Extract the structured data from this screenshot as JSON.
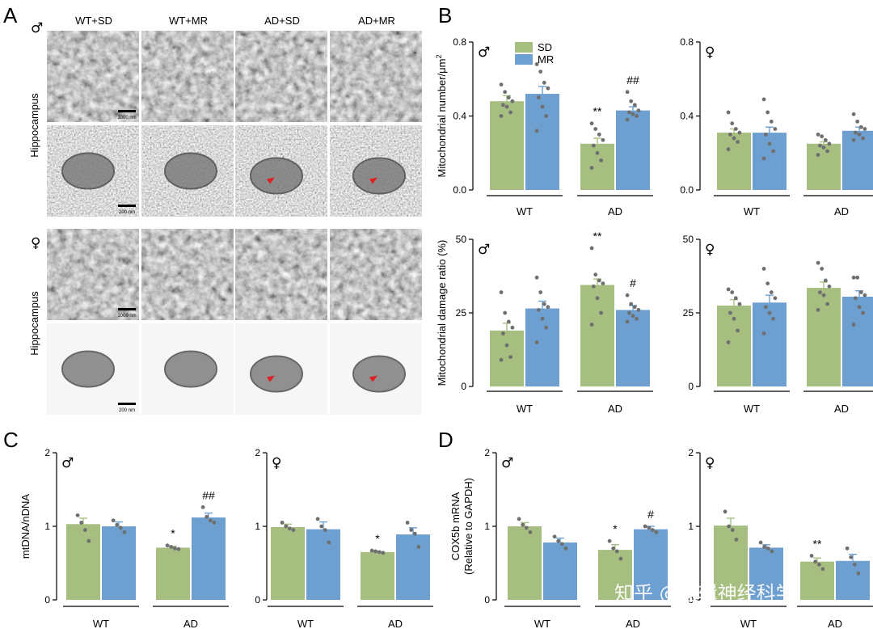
{
  "panel_labels": [
    "A",
    "B",
    "C",
    "D"
  ],
  "colors": {
    "SD": "#a6bf80",
    "MR": "#6d9fd0",
    "dot": "#6f6f6f",
    "axis": "#000000"
  },
  "sex_symbols": {
    "male": "♂",
    "female": "♀"
  },
  "panel_A": {
    "conditions": [
      "WT+SD",
      "WT+MR",
      "AD+SD",
      "AD+MR"
    ],
    "region_label": "Hippocampus",
    "scale_bars": [
      "1000 nm",
      "200 nm",
      "1000 nm",
      "200 nm"
    ]
  },
  "watermark": "知乎 @逻辑神经科学",
  "chart_data": [
    {
      "type": "bar",
      "panel": "B",
      "sex": "male",
      "categories": [
        "WT",
        "AD"
      ],
      "series": [
        {
          "name": "SD",
          "values": [
            0.48,
            0.25
          ],
          "errors": [
            0.03,
            0.03
          ],
          "points": [
            [
              0.57,
              0.53,
              0.5,
              0.48,
              0.46,
              0.45,
              0.42,
              0.4
            ],
            [
              0.36,
              0.33,
              0.3,
              0.27,
              0.24,
              0.2,
              0.16,
              0.12
            ]
          ]
        },
        {
          "name": "MR",
          "values": [
            0.52,
            0.43
          ],
          "errors": [
            0.04,
            0.02
          ],
          "points": [
            [
              0.68,
              0.64,
              0.58,
              0.55,
              0.5,
              0.45,
              0.4,
              0.32
            ],
            [
              0.53,
              0.48,
              0.46,
              0.43,
              0.42,
              0.41,
              0.4,
              0.38
            ]
          ]
        }
      ],
      "ylabel": "Mitochondrial number/μm",
      "ylabel_sup": "2",
      "yticks": [
        "0.0",
        "0.4",
        "0.8"
      ],
      "ylim": [
        0,
        0.8
      ],
      "annotations": [
        {
          "text": "**",
          "category": "AD",
          "series": "SD"
        },
        {
          "text": "##",
          "category": "AD",
          "series": "MR"
        }
      ],
      "legend": [
        "SD",
        "MR"
      ],
      "legend_position": "top-left"
    },
    {
      "type": "bar",
      "panel": "B",
      "sex": "female",
      "categories": [
        "WT",
        "AD"
      ],
      "series": [
        {
          "name": "SD",
          "values": [
            0.31,
            0.25
          ],
          "errors": [
            0.02,
            0.01
          ],
          "points": [
            [
              0.42,
              0.36,
              0.33,
              0.31,
              0.3,
              0.28,
              0.26,
              0.22
            ],
            [
              0.3,
              0.29,
              0.27,
              0.25,
              0.24,
              0.23,
              0.21,
              0.19
            ]
          ]
        },
        {
          "name": "MR",
          "values": [
            0.31,
            0.32
          ],
          "errors": [
            0.03,
            0.02
          ],
          "points": [
            [
              0.49,
              0.42,
              0.37,
              0.33,
              0.3,
              0.25,
              0.21,
              0.17
            ],
            [
              0.41,
              0.37,
              0.34,
              0.33,
              0.31,
              0.3,
              0.28,
              0.27
            ]
          ]
        }
      ],
      "yticks": [
        "0.0",
        "0.4",
        "0.8"
      ],
      "ylim": [
        0,
        0.8
      ],
      "annotations": []
    },
    {
      "type": "bar",
      "panel": "B",
      "sex": "male",
      "categories": [
        "WT",
        "AD"
      ],
      "series": [
        {
          "name": "SD",
          "values": [
            19,
            34.5
          ],
          "errors": [
            2.5,
            2
          ],
          "points": [
            [
              32,
              25,
              22,
              20,
              18,
              14,
              10,
              9
            ],
            [
              47,
              38,
              36,
              35,
              34,
              30,
              25,
              21
            ]
          ]
        },
        {
          "name": "MR",
          "values": [
            26.5,
            26
          ],
          "errors": [
            2.5,
            1.5
          ],
          "points": [
            [
              37,
              32,
              28,
              27,
              26,
              23,
              20,
              15
            ],
            [
              31,
              28,
              27,
              26,
              25,
              24,
              23,
              22
            ]
          ]
        }
      ],
      "ylabel": "Mitochondrial damage ratio (%)",
      "yticks": [
        "0",
        "25",
        "50"
      ],
      "ylim": [
        0,
        50
      ],
      "annotations": [
        {
          "text": "**",
          "category": "AD",
          "series": "SD"
        },
        {
          "text": "#",
          "category": "AD",
          "series": "MR"
        }
      ]
    },
    {
      "type": "bar",
      "panel": "B",
      "sex": "female",
      "categories": [
        "WT",
        "AD"
      ],
      "series": [
        {
          "name": "SD",
          "values": [
            27.5,
            33.5
          ],
          "errors": [
            2,
            2
          ],
          "points": [
            [
              33,
              32,
              30,
              28,
              25,
              23,
              19,
              15
            ],
            [
              42,
              40,
              36,
              34,
              32,
              31,
              28,
              26
            ]
          ]
        },
        {
          "name": "MR",
          "values": [
            28.5,
            30.5
          ],
          "errors": [
            2.5,
            2
          ],
          "points": [
            [
              40,
              35,
              32,
              30,
              27,
              25,
              23,
              18
            ],
            [
              37,
              37,
              32,
              31,
              30,
              27,
              25,
              21
            ]
          ]
        }
      ],
      "yticks": [
        "0",
        "25",
        "50"
      ],
      "ylim": [
        0,
        50
      ],
      "annotations": []
    },
    {
      "type": "bar",
      "panel": "C",
      "sex": "male",
      "categories": [
        "WT",
        "AD"
      ],
      "series": [
        {
          "name": "SD",
          "values": [
            1.03,
            0.71
          ],
          "errors": [
            0.08,
            0.02
          ],
          "points": [
            [
              1.15,
              1.05,
              0.95,
              0.8
            ],
            [
              0.74,
              0.72,
              0.7,
              0.69
            ]
          ]
        },
        {
          "name": "MR",
          "values": [
            1.0,
            1.12
          ],
          "errors": [
            0.06,
            0.06
          ],
          "points": [
            [
              1.08,
              1.02,
              0.98,
              0.92
            ],
            [
              1.26,
              1.13,
              1.08,
              1.05
            ]
          ]
        }
      ],
      "ylabel": "mtDNA/nDNA",
      "yticks": [
        "0",
        "1",
        "2"
      ],
      "ylim": [
        0,
        2
      ],
      "annotations": [
        {
          "text": "*",
          "category": "AD",
          "series": "SD"
        },
        {
          "text": "##",
          "category": "AD",
          "series": "MR"
        }
      ]
    },
    {
      "type": "bar",
      "panel": "C",
      "sex": "female",
      "categories": [
        "WT",
        "AD"
      ],
      "series": [
        {
          "name": "SD",
          "values": [
            0.99,
            0.65
          ],
          "errors": [
            0.04,
            0.01
          ],
          "points": [
            [
              1.05,
              1.0,
              0.97,
              0.95
            ],
            [
              0.67,
              0.66,
              0.65,
              0.64
            ]
          ]
        },
        {
          "name": "MR",
          "values": [
            0.96,
            0.89
          ],
          "errors": [
            0.1,
            0.09
          ],
          "points": [
            [
              1.1,
              1.0,
              0.95,
              0.78
            ],
            [
              1.05,
              0.95,
              0.9,
              0.72
            ]
          ]
        }
      ],
      "yticks": [
        "0",
        "1",
        "2"
      ],
      "ylim": [
        0,
        2
      ],
      "annotations": [
        {
          "text": "*",
          "category": "AD",
          "series": "SD"
        }
      ]
    },
    {
      "type": "bar",
      "panel": "D",
      "sex": "male",
      "categories": [
        "WT",
        "AD"
      ],
      "series": [
        {
          "name": "SD",
          "values": [
            1.0,
            0.68
          ],
          "errors": [
            0.05,
            0.07
          ],
          "points": [
            [
              1.1,
              1.02,
              0.98,
              0.92
            ],
            [
              0.8,
              0.7,
              0.66,
              0.56
            ]
          ]
        },
        {
          "name": "MR",
          "values": [
            0.78,
            0.96
          ],
          "errors": [
            0.06,
            0.04
          ],
          "points": [
            [
              0.86,
              0.8,
              0.76,
              0.7
            ],
            [
              1.0,
              0.98,
              0.95,
              0.92
            ]
          ]
        }
      ],
      "ylabel": "COX5b mRNA",
      "ylabel2": "(Relative to GAPDH)",
      "yticks": [
        "0",
        "1",
        "2"
      ],
      "ylim": [
        0,
        2
      ],
      "annotations": [
        {
          "text": "*",
          "category": "AD",
          "series": "SD"
        },
        {
          "text": "#",
          "category": "AD",
          "series": "MR"
        }
      ]
    },
    {
      "type": "bar",
      "panel": "D",
      "sex": "female",
      "categories": [
        "WT",
        "AD"
      ],
      "series": [
        {
          "name": "SD",
          "values": [
            1.01,
            0.52
          ],
          "errors": [
            0.1,
            0.05
          ],
          "points": [
            [
              1.2,
              1.0,
              0.95,
              0.82
            ],
            [
              0.6,
              0.52,
              0.48,
              0.42
            ]
          ]
        },
        {
          "name": "MR",
          "values": [
            0.71,
            0.53
          ],
          "errors": [
            0.04,
            0.09
          ],
          "points": [
            [
              0.78,
              0.72,
              0.7,
              0.66
            ],
            [
              0.7,
              0.58,
              0.48,
              0.36
            ]
          ]
        }
      ],
      "yticks": [
        "0",
        "1",
        "2"
      ],
      "ylim": [
        0,
        2
      ],
      "annotations": [
        {
          "text": "**",
          "category": "AD",
          "series": "SD"
        }
      ]
    }
  ]
}
